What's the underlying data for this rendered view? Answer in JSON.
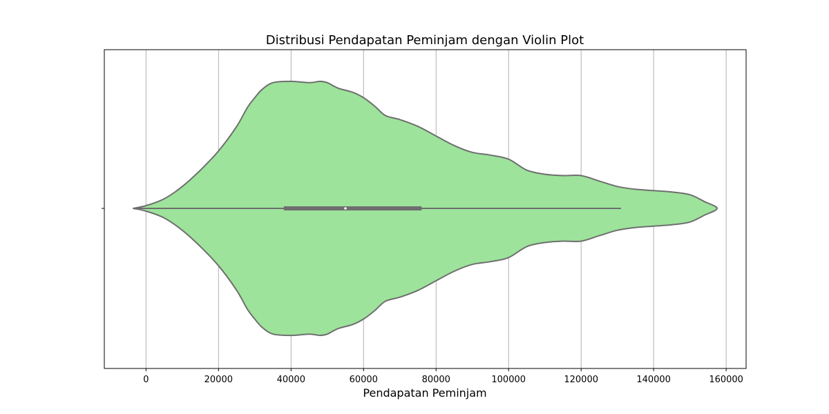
{
  "chart_data": {
    "type": "violin",
    "title": "Distribusi Pendapatan Peminjam dengan Violin Plot",
    "xlabel": "Pendapatan Peminjam",
    "ylabel": "",
    "xlim": [
      -11500,
      165500
    ],
    "xticks": [
      0,
      20000,
      40000,
      60000,
      80000,
      100000,
      120000,
      140000,
      160000
    ],
    "xtick_labels": [
      "0",
      "20000",
      "40000",
      "60000",
      "80000",
      "100000",
      "120000",
      "140000",
      "160000"
    ],
    "grid": "vertical",
    "orientation": "horizontal",
    "violin_color": "#9de39b",
    "edge_color": "#6e6e6e",
    "density": [
      [
        -3600,
        0.0
      ],
      [
        0,
        0.02
      ],
      [
        5000,
        0.07
      ],
      [
        10000,
        0.16
      ],
      [
        15000,
        0.28
      ],
      [
        20000,
        0.42
      ],
      [
        25000,
        0.6
      ],
      [
        28000,
        0.74
      ],
      [
        30000,
        0.81
      ],
      [
        32000,
        0.87
      ],
      [
        35000,
        0.92
      ],
      [
        40000,
        0.93
      ],
      [
        45000,
        0.92
      ],
      [
        48000,
        0.93
      ],
      [
        50000,
        0.92
      ],
      [
        53000,
        0.88
      ],
      [
        57000,
        0.85
      ],
      [
        60000,
        0.81
      ],
      [
        63000,
        0.75
      ],
      [
        66000,
        0.68
      ],
      [
        70000,
        0.65
      ],
      [
        75000,
        0.6
      ],
      [
        80000,
        0.53
      ],
      [
        85000,
        0.46
      ],
      [
        90000,
        0.41
      ],
      [
        95000,
        0.39
      ],
      [
        100000,
        0.36
      ],
      [
        105000,
        0.28
      ],
      [
        110000,
        0.25
      ],
      [
        115000,
        0.24
      ],
      [
        120000,
        0.24
      ],
      [
        125000,
        0.2
      ],
      [
        130000,
        0.16
      ],
      [
        135000,
        0.14
      ],
      [
        140000,
        0.13
      ],
      [
        145000,
        0.12
      ],
      [
        150000,
        0.1
      ],
      [
        154000,
        0.05
      ],
      [
        157500,
        0.0
      ]
    ],
    "box": {
      "whisker_low": -3600,
      "q1": 38000,
      "median": 55000,
      "q3": 76000,
      "whisker_high": 131000
    }
  }
}
